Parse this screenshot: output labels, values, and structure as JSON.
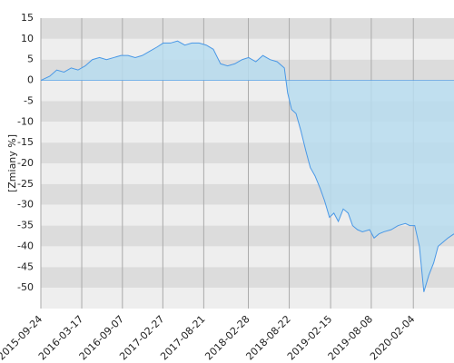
{
  "chart_data": {
    "type": "area",
    "ylabel": "[Zmiany %]",
    "color": "#4a98e6",
    "fill_color": "#b7dcef",
    "grid": true,
    "band_colors": [
      "#dcdcdc",
      "#eeeeee"
    ],
    "xlim": [
      "2015-09-24",
      "2020-07-27"
    ],
    "xticks": [
      "2015-09-24",
      "2016-03-17",
      "2016-09-07",
      "2017-02-27",
      "2017-08-21",
      "2018-02-28",
      "2018-08-22",
      "2019-02-15",
      "2019-08-08",
      "2020-02-04"
    ],
    "ylim": [
      -55,
      15
    ],
    "yticks": [
      15,
      10,
      5,
      0,
      -5,
      -10,
      -15,
      -20,
      -25,
      -30,
      -35,
      -40,
      -45,
      -50
    ],
    "x": [
      "2015-09-24",
      "2015-11-01",
      "2015-12-01",
      "2016-01-01",
      "2016-02-01",
      "2016-03-01",
      "2016-04-01",
      "2016-05-01",
      "2016-06-01",
      "2016-07-01",
      "2016-08-01",
      "2016-09-01",
      "2016-10-01",
      "2016-11-01",
      "2016-12-01",
      "2017-01-01",
      "2017-02-01",
      "2017-03-01",
      "2017-04-01",
      "2017-05-01",
      "2017-06-01",
      "2017-07-01",
      "2017-08-01",
      "2017-09-01",
      "2017-10-01",
      "2017-11-01",
      "2017-12-01",
      "2018-01-01",
      "2018-02-01",
      "2018-03-01",
      "2018-04-01",
      "2018-05-01",
      "2018-06-01",
      "2018-07-01",
      "2018-08-01",
      "2018-08-15",
      "2018-09-01",
      "2018-09-20",
      "2018-10-10",
      "2018-11-01",
      "2018-11-20",
      "2018-12-10",
      "2019-01-01",
      "2019-01-20",
      "2019-02-10",
      "2019-03-01",
      "2019-03-20",
      "2019-04-10",
      "2019-05-01",
      "2019-05-20",
      "2019-06-10",
      "2019-07-01",
      "2019-08-01",
      "2019-08-20",
      "2019-09-10",
      "2019-10-01",
      "2019-11-01",
      "2019-12-01",
      "2020-01-01",
      "2020-01-20",
      "2020-02-10",
      "2020-03-01",
      "2020-03-20",
      "2020-04-10",
      "2020-05-01",
      "2020-05-20",
      "2020-06-10",
      "2020-07-01",
      "2020-07-27"
    ],
    "values": [
      0,
      1,
      2.5,
      2,
      3,
      2.5,
      3.5,
      5,
      5.5,
      5,
      5.5,
      6,
      6,
      5.5,
      6,
      7,
      8,
      9,
      9,
      9.5,
      8.5,
      9,
      9,
      8.5,
      7.5,
      4,
      3.5,
      4,
      5,
      5.5,
      4.5,
      6,
      5,
      4.5,
      3,
      -3,
      -7,
      -8,
      -12,
      -17,
      -21,
      -23,
      -26,
      -29,
      -33,
      -32,
      -34,
      -31,
      -32,
      -35,
      -36,
      -36.5,
      -36,
      -38,
      -37,
      -36.5,
      -36,
      -35,
      -34.5,
      -35,
      -35,
      -40,
      -51,
      -47,
      -44,
      -40,
      -39,
      -38,
      -37
    ]
  }
}
